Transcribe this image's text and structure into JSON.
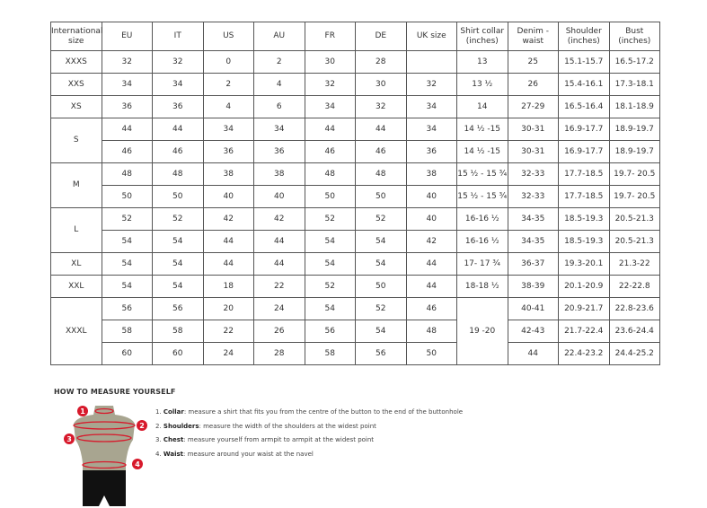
{
  "table": {
    "headers": [
      "International size",
      "EU",
      "IT",
      "US",
      "AU",
      "FR",
      "DE",
      "UK size",
      "Shirt collar (inches)",
      "Denim - waist",
      "Shoulder (inches)",
      "Bust (inches)"
    ],
    "groups": [
      {
        "size": "XXXS",
        "rows": [
          [
            "32",
            "32",
            "0",
            "2",
            "30",
            "28",
            "",
            "13",
            "25",
            "15.1-15.7",
            "16.5-17.2"
          ]
        ]
      },
      {
        "size": "XXS",
        "rows": [
          [
            "34",
            "34",
            "2",
            "4",
            "32",
            "30",
            "32",
            "13 ½",
            "26",
            "15.4-16.1",
            "17.3-18.1"
          ]
        ]
      },
      {
        "size": "XS",
        "rows": [
          [
            "36",
            "36",
            "4",
            "6",
            "34",
            "32",
            "34",
            "14",
            "27-29",
            "16.5-16.4",
            "18.1-18.9"
          ]
        ]
      },
      {
        "size": "S",
        "rows": [
          [
            "44",
            "44",
            "34",
            "34",
            "44",
            "44",
            "34",
            "14 ½ -15",
            "30-31",
            "16.9-17.7",
            "18.9-19.7"
          ],
          [
            "46",
            "46",
            "36",
            "36",
            "46",
            "46",
            "36",
            "14 ½ -15",
            "30-31",
            "16.9-17.7",
            "18.9-19.7"
          ]
        ]
      },
      {
        "size": "M",
        "rows": [
          [
            "48",
            "48",
            "38",
            "38",
            "48",
            "48",
            "38",
            "15 ½ - 15 ¾",
            "32-33",
            "17.7-18.5",
            "19.7- 20.5"
          ],
          [
            "50",
            "50",
            "40",
            "40",
            "50",
            "50",
            "40",
            "15 ½ - 15 ¾",
            "32-33",
            "17.7-18.5",
            "19.7- 20.5"
          ]
        ]
      },
      {
        "size": "L",
        "rows": [
          [
            "52",
            "52",
            "42",
            "42",
            "52",
            "52",
            "40",
            "16-16 ½",
            "34-35",
            "18.5-19.3",
            "20.5-21.3"
          ],
          [
            "54",
            "54",
            "44",
            "44",
            "54",
            "54",
            "42",
            "16-16 ½",
            "34-35",
            "18.5-19.3",
            "20.5-21.3"
          ]
        ]
      },
      {
        "size": "XL",
        "rows": [
          [
            "54",
            "54",
            "44",
            "44",
            "54",
            "54",
            "44",
            "17- 17 ¾",
            "36-37",
            "19.3-20.1",
            "21.3-22"
          ]
        ]
      },
      {
        "size": "XXL",
        "rows": [
          [
            "54",
            "54",
            "18",
            "22",
            "52",
            "50",
            "44",
            "18-18 ½",
            "38-39",
            "20.1-20.9",
            "22-22.8"
          ]
        ]
      },
      {
        "size": "XXXL",
        "collar_merged": "19 -20",
        "rows": [
          [
            "56",
            "56",
            "20",
            "24",
            "54",
            "52",
            "46",
            null,
            "40-41",
            "20.9-21.7",
            "22.8-23.6"
          ],
          [
            "58",
            "58",
            "22",
            "26",
            "56",
            "54",
            "48",
            null,
            "42-43",
            "21.7-22.4",
            "23.6-24.4"
          ],
          [
            "60",
            "60",
            "24",
            "28",
            "58",
            "56",
            "50",
            null,
            "44",
            "22.4-23.2",
            "24.4-25.2"
          ]
        ]
      }
    ]
  },
  "guide": {
    "title": "HOW TO MEASURE YOURSELF",
    "steps": [
      {
        "num": "1.",
        "term": "Collar",
        "text": ": measure a shirt that fits you from the centre of the button to the end of the buttonhole"
      },
      {
        "num": "2.",
        "term": "Shoulders",
        "text": ": measure the width of the shoulders at the widest point"
      },
      {
        "num": "3.",
        "term": "Chest",
        "text": ": measure yourself from armpit to armpit at the widest point"
      },
      {
        "num": "4.",
        "term": "Waist",
        "text": ": measure around your waist at the navel"
      }
    ],
    "markers": [
      "1",
      "2",
      "3",
      "4"
    ],
    "colors": {
      "marker": "#d7192b",
      "torso": "#a8a590",
      "shorts": "#111111"
    }
  }
}
